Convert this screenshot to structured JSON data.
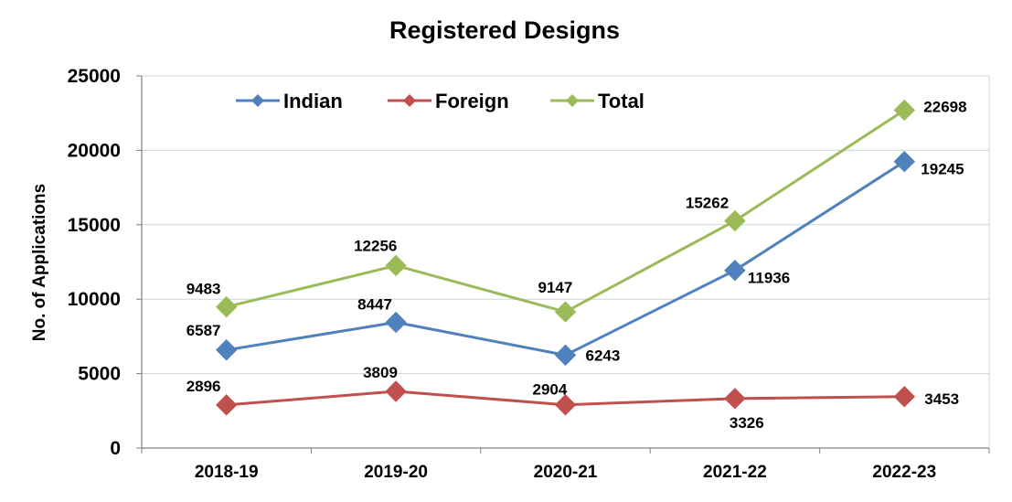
{
  "chart_data": {
    "type": "line",
    "title": "Registered Designs",
    "ylabel": "No. of Applications",
    "xlabel": "",
    "categories": [
      "2018-19",
      "2019-20",
      "2020-21",
      "2021-22",
      "2022-23"
    ],
    "ylim": [
      0,
      25000
    ],
    "yticks": [
      0,
      5000,
      10000,
      15000,
      20000,
      25000
    ],
    "grid": true,
    "legend_position": "top-left",
    "series": [
      {
        "name": "Indian",
        "color": "#4F81BD",
        "values": [
          6587,
          8447,
          6243,
          11936,
          19245
        ]
      },
      {
        "name": "Foreign",
        "color": "#C0504D",
        "values": [
          2896,
          3809,
          2904,
          3326,
          3453
        ]
      },
      {
        "name": "Total",
        "color": "#9BBB59",
        "values": [
          9483,
          12256,
          9147,
          15262,
          22698
        ]
      }
    ]
  }
}
